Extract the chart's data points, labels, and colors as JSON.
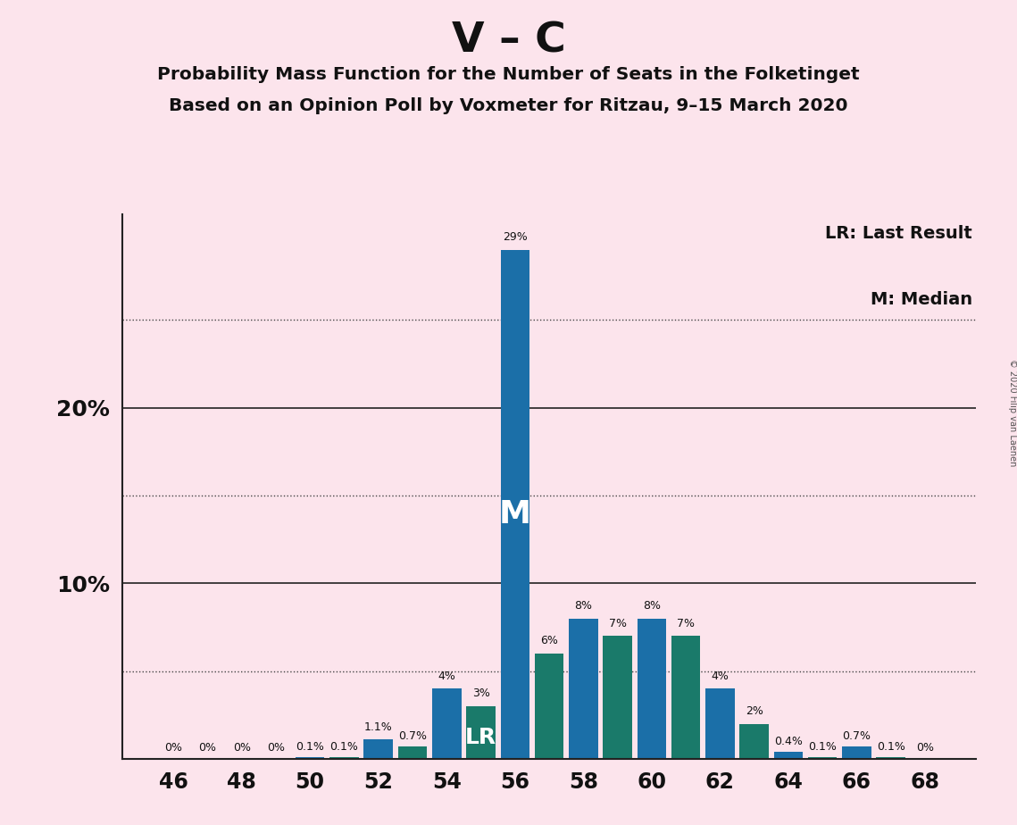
{
  "title_main": "V – C",
  "title_sub1": "Probability Mass Function for the Number of Seats in the Folketinget",
  "title_sub2": "Based on an Opinion Poll by Voxmeter for Ritzau, 9–15 March 2020",
  "copyright": "© 2020 Filip van Laenen",
  "legend_lr": "LR: Last Result",
  "legend_m": "M: Median",
  "background_color": "#fce4ec",
  "bar_color_blue": "#1b6fa8",
  "bar_color_teal": "#1a7a6a",
  "seats": [
    46,
    47,
    48,
    49,
    50,
    51,
    52,
    53,
    54,
    55,
    56,
    57,
    58,
    59,
    60,
    61,
    62,
    63,
    64,
    65,
    66,
    67,
    68
  ],
  "values": [
    0.0,
    0.0,
    0.0,
    0.0,
    0.1,
    0.1,
    1.1,
    0.7,
    4.0,
    3.0,
    29.0,
    6.0,
    8.0,
    7.0,
    8.0,
    7.0,
    4.0,
    2.0,
    0.4,
    0.1,
    0.7,
    0.1,
    0.0
  ],
  "value_labels": [
    "0%",
    "0%",
    "0%",
    "0%",
    "0.1%",
    "0.1%",
    "1.1%",
    "0.7%",
    "4%",
    "3%",
    "29%",
    "6%",
    "8%",
    "7%",
    "8%",
    "7%",
    "4%",
    "2%",
    "0.4%",
    "0.1%",
    "0.7%",
    "0.1%",
    "0%"
  ],
  "last_result_seat": 55,
  "median_seat": 56,
  "xlim": [
    44.5,
    69.5
  ],
  "ylim": [
    0,
    31
  ],
  "xticks": [
    46,
    48,
    50,
    52,
    54,
    56,
    58,
    60,
    62,
    64,
    66,
    68
  ],
  "grid_solid": [
    10,
    20
  ],
  "grid_dotted": [
    5,
    15,
    25
  ],
  "bar_width": 0.85,
  "last_result_label": "LR",
  "median_label": "M"
}
